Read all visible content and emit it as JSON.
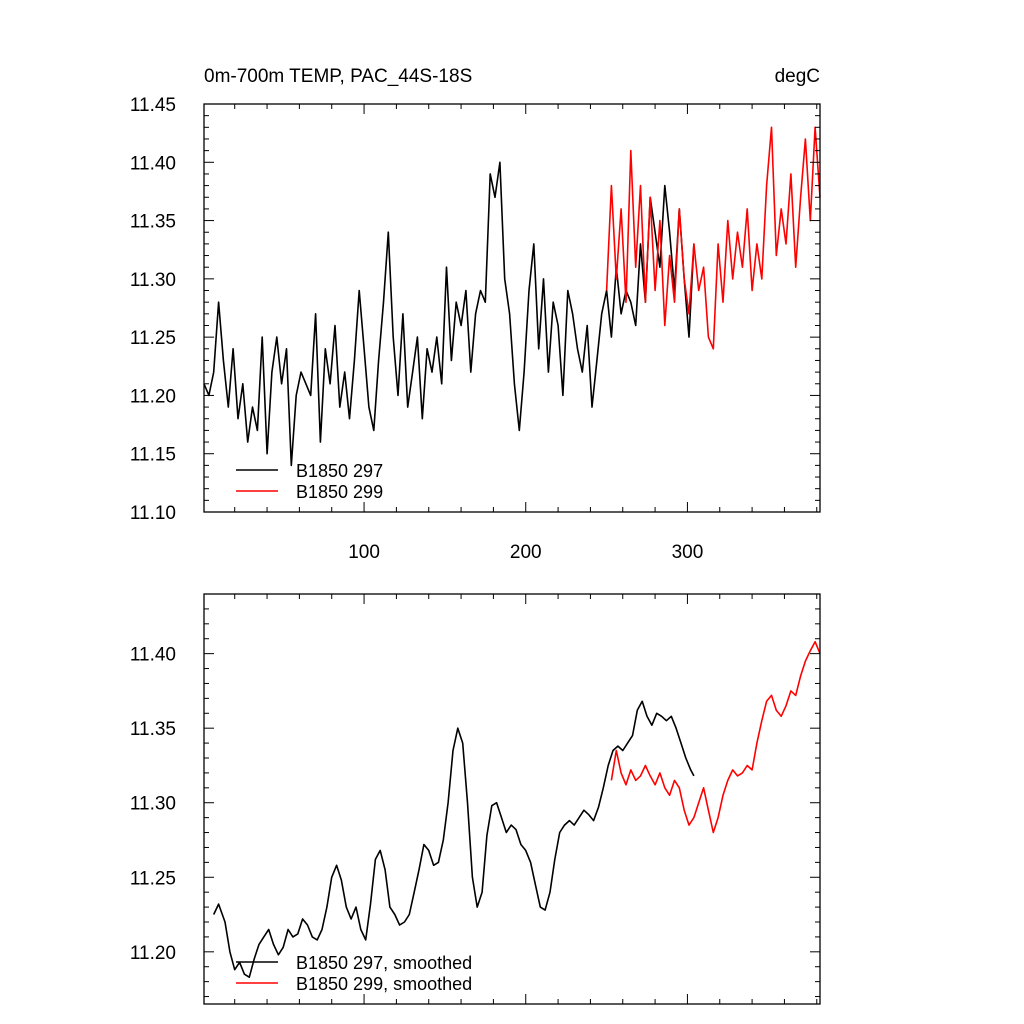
{
  "chart_data": [
    {
      "type": "line",
      "title_left": "0m-700m TEMP, PAC_44S-18S",
      "title_right": "degC",
      "xlim": [
        1,
        382
      ],
      "ylim": [
        11.1,
        11.45
      ],
      "xticks": [
        100,
        200,
        300
      ],
      "xtick_labels": [
        "100",
        "200",
        "300"
      ],
      "yticks": [
        11.1,
        11.15,
        11.2,
        11.25,
        11.3,
        11.35,
        11.4,
        11.45
      ],
      "ytick_labels": [
        "11.10",
        "11.15",
        "11.20",
        "11.25",
        "11.30",
        "11.35",
        "11.40",
        "11.45"
      ],
      "legend_position": "bottom-left",
      "series": [
        {
          "name": "B1850 297",
          "color": "#000000",
          "x": [
            1,
            4,
            7,
            10,
            13,
            16,
            19,
            22,
            25,
            28,
            31,
            34,
            37,
            40,
            43,
            46,
            49,
            52,
            55,
            58,
            61,
            64,
            67,
            70,
            73,
            76,
            79,
            82,
            85,
            88,
            91,
            94,
            97,
            100,
            103,
            106,
            109,
            112,
            115,
            118,
            121,
            124,
            127,
            130,
            133,
            136,
            139,
            142,
            145,
            148,
            151,
            154,
            157,
            160,
            163,
            166,
            169,
            172,
            175,
            178,
            181,
            184,
            187,
            190,
            193,
            196,
            199,
            202,
            205,
            208,
            211,
            214,
            217,
            220,
            223,
            226,
            229,
            232,
            235,
            238,
            241,
            244,
            247,
            250,
            253,
            256,
            259,
            262,
            265,
            268,
            271,
            274,
            277,
            280,
            283,
            286,
            289,
            292,
            295,
            298,
            301,
            304
          ],
          "values": [
            11.21,
            11.2,
            11.22,
            11.28,
            11.23,
            11.19,
            11.24,
            11.18,
            11.21,
            11.16,
            11.19,
            11.17,
            11.25,
            11.15,
            11.22,
            11.25,
            11.21,
            11.24,
            11.14,
            11.2,
            11.22,
            11.21,
            11.2,
            11.27,
            11.16,
            11.24,
            11.21,
            11.26,
            11.19,
            11.22,
            11.18,
            11.23,
            11.29,
            11.24,
            11.19,
            11.17,
            11.23,
            11.28,
            11.34,
            11.25,
            11.2,
            11.27,
            11.19,
            11.22,
            11.25,
            11.18,
            11.24,
            11.22,
            11.25,
            11.21,
            11.31,
            11.23,
            11.28,
            11.26,
            11.29,
            11.22,
            11.27,
            11.29,
            11.28,
            11.39,
            11.37,
            11.4,
            11.3,
            11.27,
            11.21,
            11.17,
            11.22,
            11.29,
            11.33,
            11.24,
            11.3,
            11.22,
            11.28,
            11.26,
            11.2,
            11.29,
            11.27,
            11.24,
            11.22,
            11.26,
            11.19,
            11.23,
            11.27,
            11.29,
            11.25,
            11.31,
            11.27,
            11.29,
            11.28,
            11.26,
            11.33,
            11.28,
            11.37,
            11.34,
            11.31,
            11.38,
            11.34,
            11.29,
            11.36,
            11.3,
            11.25,
            11.33
          ]
        },
        {
          "name": "B1850 299",
          "color": "#ff0000",
          "x": [
            250,
            253,
            256,
            259,
            262,
            265,
            268,
            271,
            274,
            277,
            280,
            283,
            286,
            289,
            292,
            295,
            298,
            301,
            304,
            307,
            310,
            313,
            316,
            319,
            322,
            325,
            328,
            331,
            334,
            337,
            340,
            343,
            346,
            349,
            352,
            355,
            358,
            361,
            364,
            367,
            370,
            373,
            376,
            379,
            382
          ],
          "values": [
            11.29,
            11.38,
            11.3,
            11.36,
            11.28,
            11.41,
            11.31,
            11.38,
            11.28,
            11.37,
            11.29,
            11.35,
            11.26,
            11.32,
            11.28,
            11.36,
            11.3,
            11.27,
            11.33,
            11.29,
            11.31,
            11.25,
            11.24,
            11.33,
            11.28,
            11.35,
            11.3,
            11.34,
            11.31,
            11.36,
            11.29,
            11.33,
            11.3,
            11.38,
            11.43,
            11.32,
            11.36,
            11.33,
            11.39,
            11.31,
            11.37,
            11.42,
            11.35,
            11.43,
            11.37
          ]
        }
      ]
    },
    {
      "type": "line",
      "xlim": [
        1,
        382
      ],
      "ylim": [
        11.165,
        11.44
      ],
      "yticks": [
        11.2,
        11.25,
        11.3,
        11.35,
        11.4
      ],
      "ytick_labels": [
        "11.20",
        "11.25",
        "11.30",
        "11.35",
        "11.40"
      ],
      "legend_position": "bottom-left",
      "series": [
        {
          "name": "B1850 297, smoothed",
          "color": "#000000",
          "x": [
            7,
            10,
            14,
            17,
            20,
            23,
            26,
            29,
            32,
            35,
            38,
            41,
            44,
            47,
            50,
            53,
            56,
            59,
            62,
            65,
            68,
            71,
            74,
            77,
            80,
            83,
            86,
            89,
            92,
            95,
            98,
            101,
            104,
            107,
            110,
            113,
            116,
            119,
            122,
            125,
            128,
            131,
            134,
            137,
            140,
            143,
            146,
            149,
            152,
            155,
            158,
            161,
            164,
            167,
            170,
            173,
            176,
            179,
            182,
            185,
            188,
            191,
            194,
            197,
            200,
            203,
            206,
            209,
            212,
            215,
            218,
            221,
            224,
            227,
            230,
            233,
            236,
            239,
            242,
            245,
            248,
            251,
            254,
            257,
            260,
            263,
            266,
            269,
            272,
            275,
            278,
            281,
            284,
            287,
            290,
            293,
            296,
            299,
            302,
            304
          ],
          "values": [
            11.225,
            11.232,
            11.22,
            11.2,
            11.188,
            11.193,
            11.185,
            11.183,
            11.195,
            11.205,
            11.21,
            11.215,
            11.205,
            11.198,
            11.203,
            11.215,
            11.21,
            11.212,
            11.222,
            11.218,
            11.21,
            11.208,
            11.215,
            11.23,
            11.25,
            11.258,
            11.248,
            11.23,
            11.222,
            11.23,
            11.215,
            11.208,
            11.232,
            11.262,
            11.268,
            11.255,
            11.23,
            11.225,
            11.218,
            11.22,
            11.225,
            11.24,
            11.255,
            11.272,
            11.268,
            11.258,
            11.26,
            11.275,
            11.3,
            11.335,
            11.35,
            11.34,
            11.3,
            11.25,
            11.23,
            11.24,
            11.278,
            11.298,
            11.3,
            11.29,
            11.28,
            11.285,
            11.282,
            11.272,
            11.268,
            11.26,
            11.245,
            11.23,
            11.228,
            11.24,
            11.262,
            11.28,
            11.285,
            11.288,
            11.285,
            11.29,
            11.295,
            11.292,
            11.288,
            11.297,
            11.31,
            11.325,
            11.335,
            11.338,
            11.335,
            11.34,
            11.345,
            11.362,
            11.368,
            11.358,
            11.352,
            11.36,
            11.358,
            11.355,
            11.358,
            11.35,
            11.34,
            11.33,
            11.322,
            11.318
          ]
        },
        {
          "name": "B1850 299, smoothed",
          "color": "#ff0000",
          "x": [
            253,
            256,
            259,
            262,
            265,
            268,
            271,
            274,
            277,
            280,
            283,
            286,
            289,
            292,
            295,
            298,
            301,
            304,
            307,
            310,
            313,
            316,
            319,
            322,
            325,
            328,
            331,
            334,
            337,
            340,
            343,
            346,
            349,
            352,
            355,
            358,
            361,
            364,
            367,
            370,
            373,
            376,
            379,
            382
          ],
          "values": [
            11.315,
            11.335,
            11.32,
            11.312,
            11.322,
            11.315,
            11.318,
            11.325,
            11.318,
            11.312,
            11.32,
            11.31,
            11.305,
            11.315,
            11.31,
            11.295,
            11.285,
            11.29,
            11.3,
            11.31,
            11.295,
            11.28,
            11.29,
            11.305,
            11.315,
            11.322,
            11.318,
            11.32,
            11.325,
            11.322,
            11.34,
            11.355,
            11.368,
            11.372,
            11.362,
            11.358,
            11.365,
            11.375,
            11.372,
            11.385,
            11.395,
            11.402,
            11.408,
            11.4
          ]
        }
      ]
    }
  ]
}
